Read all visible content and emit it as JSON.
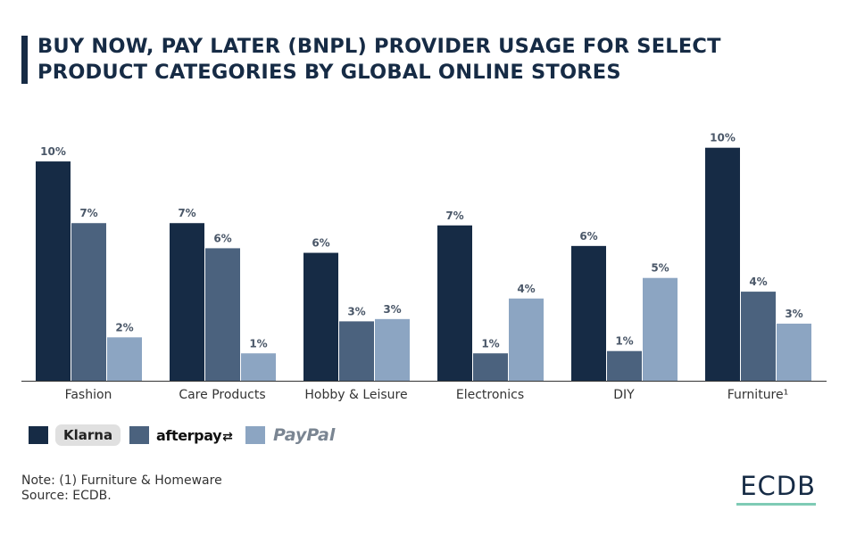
{
  "title": "BUY NOW, PAY LATER (BNPL) PROVIDER USAGE FOR SELECT PRODUCT CATEGORIES BY GLOBAL ONLINE STORES",
  "colors": {
    "klarna": "#162b45",
    "afterpay": "#4b627e",
    "paypal": "#8ca5c2",
    "accent": "#7fcbb5"
  },
  "chart_data": {
    "type": "bar",
    "categories": [
      "Fashion",
      "Care Products",
      "Hobby & Leisure",
      "Electronics",
      "DIY",
      "Furniture¹"
    ],
    "series": [
      {
        "name": "Klarna",
        "values": [
          10,
          7,
          6,
          7,
          6,
          10
        ],
        "labels": [
          "10%",
          "7%",
          "6%",
          "7%",
          "6%",
          "10%"
        ]
      },
      {
        "name": "afterpay",
        "values": [
          7,
          6,
          3,
          1,
          1,
          4
        ],
        "labels": [
          "7%",
          "6%",
          "3%",
          "1%",
          "1%",
          "4%"
        ]
      },
      {
        "name": "PayPal",
        "values": [
          2,
          1,
          3,
          4,
          5,
          3
        ],
        "labels": [
          "2%",
          "1%",
          "3%",
          "4%",
          "5%",
          "3%"
        ]
      }
    ],
    "exact_values": [
      [
        9.6,
        6.9,
        5.6,
        6.8,
        5.9,
        10.2
      ],
      [
        6.9,
        5.8,
        2.6,
        1.2,
        1.3,
        3.9
      ],
      [
        1.9,
        1.2,
        2.7,
        3.6,
        4.5,
        2.5
      ]
    ],
    "unit": "%",
    "ylim": [
      0,
      10.5
    ],
    "grid": false,
    "legend": "bottom-left"
  },
  "legend": {
    "klarna_label": "Klarna",
    "afterpay_label": "afterpay",
    "afterpay_arrows": "⇄",
    "paypal_label": "PayPal"
  },
  "footer": {
    "note": "Note: (1) Furniture & Homeware",
    "source": "Source: ECDB.",
    "brand": "ECDB"
  }
}
